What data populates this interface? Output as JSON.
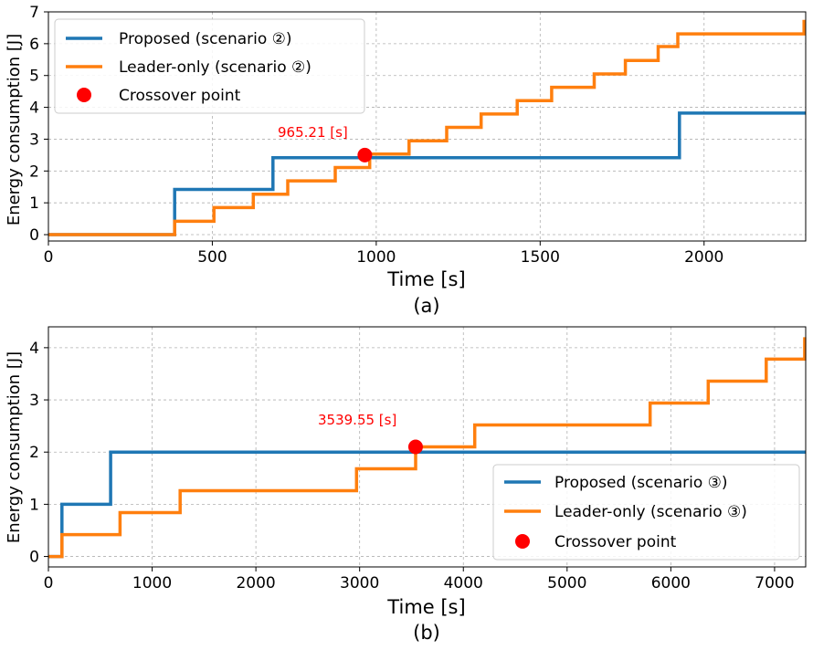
{
  "chart_data": [
    {
      "type": "line",
      "panel": "(a)",
      "xlabel": "Time [s]",
      "ylabel": "Energy consumption [J]",
      "xlim": [
        0,
        2310
      ],
      "ylim": [
        -0.2,
        7
      ],
      "xticks": [
        0,
        500,
        1000,
        1500,
        2000
      ],
      "xtick_labels": [
        "0",
        "500",
        "1000",
        "1500",
        "2000"
      ],
      "yticks": [
        0,
        1,
        2,
        3,
        4,
        5,
        6,
        7
      ],
      "ytick_labels": [
        "0",
        "1",
        "2",
        "3",
        "4",
        "5",
        "6",
        "7"
      ],
      "grid": true,
      "legend_position": "top-left",
      "series": [
        {
          "name": "Proposed (scenario ②)",
          "color": "#1f77b4",
          "step": true,
          "x": [
            0,
            385,
            385,
            685,
            685,
            1925,
            1925,
            2310
          ],
          "y": [
            0,
            0,
            1.42,
            1.42,
            2.42,
            2.42,
            3.82,
            3.82
          ]
        },
        {
          "name": "Leader-only (scenario ②)",
          "color": "#ff7f0e",
          "step": true,
          "x": [
            0,
            385,
            385,
            505,
            505,
            625,
            625,
            730,
            730,
            875,
            875,
            980,
            980,
            1100,
            1100,
            1215,
            1215,
            1320,
            1320,
            1430,
            1430,
            1535,
            1535,
            1665,
            1665,
            1760,
            1760,
            1860,
            1860,
            1920,
            1920,
            2305,
            2305
          ],
          "y": [
            0,
            0,
            0.42,
            0.42,
            0.85,
            0.85,
            1.27,
            1.27,
            1.69,
            1.69,
            2.11,
            2.11,
            2.53,
            2.53,
            2.95,
            2.95,
            3.37,
            3.37,
            3.79,
            3.79,
            4.21,
            4.21,
            4.63,
            4.63,
            5.05,
            5.05,
            5.47,
            5.47,
            5.91,
            5.91,
            6.31,
            6.31,
            6.75
          ]
        }
      ],
      "crossover": {
        "name": "Crossover point",
        "x": 965.21,
        "y": 2.5,
        "label": "965.21 [s]",
        "color": "#ff0000"
      },
      "caption": "(a)"
    },
    {
      "type": "line",
      "panel": "(b)",
      "xlabel": "Time [s]",
      "ylabel": "Energy consumption [J]",
      "xlim": [
        0,
        7300
      ],
      "ylim": [
        -0.2,
        4.4
      ],
      "xticks": [
        0,
        1000,
        2000,
        3000,
        4000,
        5000,
        6000,
        7000
      ],
      "xtick_labels": [
        "0",
        "1000",
        "2000",
        "3000",
        "4000",
        "5000",
        "6000",
        "7000"
      ],
      "yticks": [
        0,
        1,
        2,
        3,
        4
      ],
      "ytick_labels": [
        "0",
        "1",
        "2",
        "3",
        "4"
      ],
      "grid": true,
      "legend_position": "lower-right",
      "series": [
        {
          "name": "Proposed (scenario ③)",
          "color": "#1f77b4",
          "step": true,
          "x": [
            0,
            130,
            130,
            600,
            600,
            7300
          ],
          "y": [
            0,
            0,
            1.0,
            1.0,
            2.0,
            2.0
          ]
        },
        {
          "name": "Leader-only (scenario ③)",
          "color": "#ff7f0e",
          "step": true,
          "x": [
            0,
            130,
            130,
            690,
            690,
            1270,
            1270,
            2970,
            2970,
            3540,
            3540,
            4110,
            4110,
            5800,
            5800,
            6360,
            6360,
            6920,
            6920,
            7290,
            7290
          ],
          "y": [
            0,
            0,
            0.42,
            0.42,
            0.84,
            0.84,
            1.26,
            1.26,
            1.68,
            1.68,
            2.1,
            2.1,
            2.52,
            2.52,
            2.94,
            2.94,
            3.36,
            3.36,
            3.78,
            3.78,
            4.2
          ]
        }
      ],
      "crossover": {
        "name": "Crossover point",
        "x": 3539.55,
        "y": 2.1,
        "label": "3539.55 [s]",
        "color": "#ff0000"
      },
      "caption": "(b)"
    }
  ]
}
